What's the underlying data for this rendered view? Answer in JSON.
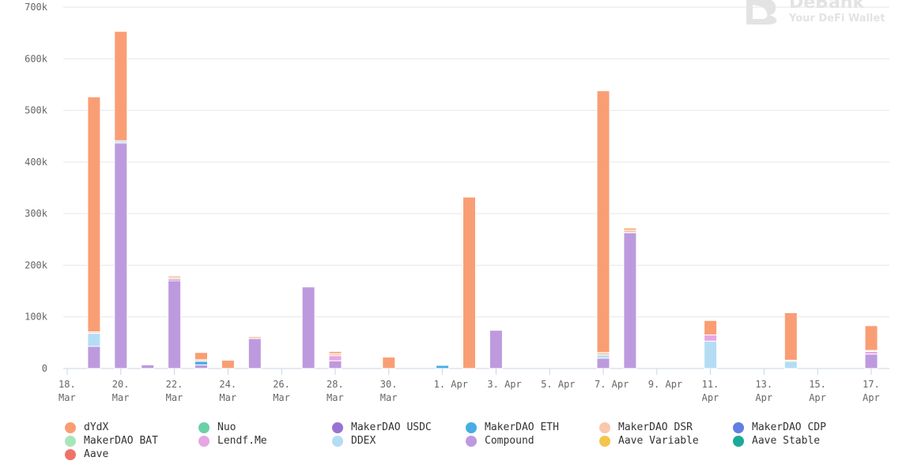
{
  "watermark": {
    "brand": "DeBank",
    "tagline": "Your DeFi Wallet"
  },
  "chart_data": {
    "type": "bar",
    "stacked": true,
    "title": "",
    "xlabel": "",
    "ylabel": "",
    "ylim": [
      0,
      700000
    ],
    "yticks": [
      0,
      100000,
      200000,
      300000,
      400000,
      500000,
      600000,
      700000
    ],
    "ytick_labels": [
      "0",
      "100k",
      "200k",
      "300k",
      "400k",
      "500k",
      "600k",
      "700k"
    ],
    "grid": true,
    "legend_position": "bottom",
    "x_ticks": [
      {
        "date": "2020-03-18",
        "line1": "18.",
        "line2": "Mar"
      },
      {
        "date": "2020-03-20",
        "line1": "20.",
        "line2": "Mar"
      },
      {
        "date": "2020-03-22",
        "line1": "22.",
        "line2": "Mar"
      },
      {
        "date": "2020-03-24",
        "line1": "24.",
        "line2": "Mar"
      },
      {
        "date": "2020-03-26",
        "line1": "26.",
        "line2": "Mar"
      },
      {
        "date": "2020-03-28",
        "line1": "28.",
        "line2": "Mar"
      },
      {
        "date": "2020-03-30",
        "line1": "30.",
        "line2": "Mar"
      },
      {
        "date": "2020-04-01",
        "line1": "1. Apr",
        "line2": ""
      },
      {
        "date": "2020-04-03",
        "line1": "3. Apr",
        "line2": ""
      },
      {
        "date": "2020-04-05",
        "line1": "5. Apr",
        "line2": ""
      },
      {
        "date": "2020-04-07",
        "line1": "7. Apr",
        "line2": ""
      },
      {
        "date": "2020-04-09",
        "line1": "9. Apr",
        "line2": ""
      },
      {
        "date": "2020-04-11",
        "line1": "11.",
        "line2": "Apr"
      },
      {
        "date": "2020-04-13",
        "line1": "13.",
        "line2": "Apr"
      },
      {
        "date": "2020-04-15",
        "line1": "15.",
        "line2": "Apr"
      },
      {
        "date": "2020-04-17",
        "line1": "17.",
        "line2": "Apr"
      }
    ],
    "series": [
      {
        "name": "dYdX",
        "color": "#f99e74"
      },
      {
        "name": "Nuo",
        "color": "#6cd0a6"
      },
      {
        "name": "MakerDAO USDC",
        "color": "#9a72d2"
      },
      {
        "name": "MakerDAO ETH",
        "color": "#47aee3"
      },
      {
        "name": "MakerDAO DSR",
        "color": "#f8c8ad"
      },
      {
        "name": "MakerDAO CDP",
        "color": "#627ee2"
      },
      {
        "name": "MakerDAO BAT",
        "color": "#a8e6b9"
      },
      {
        "name": "Lendf.Me",
        "color": "#e7a6e4"
      },
      {
        "name": "DDEX",
        "color": "#b4ddf5"
      },
      {
        "name": "Compound",
        "color": "#bd9ade"
      },
      {
        "name": "Aave Variable",
        "color": "#f5c44e"
      },
      {
        "name": "Aave Stable",
        "color": "#1aaa9c"
      },
      {
        "name": "Aave",
        "color": "#ef7269"
      }
    ],
    "bars": [
      {
        "date": "2020-03-19",
        "stack": [
          {
            "series": "Compound",
            "value": 43000
          },
          {
            "series": "DDEX",
            "value": 25000
          },
          {
            "series": "MakerDAO DSR",
            "value": 3000
          },
          {
            "series": "dYdX",
            "value": 455000
          }
        ]
      },
      {
        "date": "2020-03-20",
        "stack": [
          {
            "series": "Compound",
            "value": 437000
          },
          {
            "series": "DDEX",
            "value": 4000
          },
          {
            "series": "dYdX",
            "value": 212000
          }
        ]
      },
      {
        "date": "2020-03-21",
        "stack": [
          {
            "series": "Compound",
            "value": 7000
          }
        ]
      },
      {
        "date": "2020-03-22",
        "stack": [
          {
            "series": "Compound",
            "value": 170000
          },
          {
            "series": "MakerDAO USDC",
            "value": 3000
          },
          {
            "series": "MakerDAO DSR",
            "value": 3000
          },
          {
            "series": "dYdX",
            "value": 3000
          }
        ]
      },
      {
        "date": "2020-03-23",
        "stack": [
          {
            "series": "Compound",
            "value": 7000
          },
          {
            "series": "MakerDAO ETH",
            "value": 7000
          },
          {
            "series": "MakerDAO DSR",
            "value": 3000
          },
          {
            "series": "dYdX",
            "value": 14000
          }
        ]
      },
      {
        "date": "2020-03-24",
        "stack": [
          {
            "series": "dYdX",
            "value": 16000
          }
        ]
      },
      {
        "date": "2020-03-25",
        "stack": [
          {
            "series": "Compound",
            "value": 58000
          },
          {
            "series": "MakerDAO DSR",
            "value": 4000
          }
        ]
      },
      {
        "date": "2020-03-27",
        "stack": [
          {
            "series": "Compound",
            "value": 158000
          }
        ]
      },
      {
        "date": "2020-03-28",
        "stack": [
          {
            "series": "Compound",
            "value": 15000
          },
          {
            "series": "Lendf.Me",
            "value": 10000
          },
          {
            "series": "MakerDAO DSR",
            "value": 4000
          },
          {
            "series": "dYdX",
            "value": 4000
          }
        ]
      },
      {
        "date": "2020-03-30",
        "stack": [
          {
            "series": "dYdX",
            "value": 22000
          }
        ]
      },
      {
        "date": "2020-04-01",
        "stack": [
          {
            "series": "MakerDAO ETH",
            "value": 6000
          }
        ]
      },
      {
        "date": "2020-04-02",
        "stack": [
          {
            "series": "dYdX",
            "value": 332000
          }
        ]
      },
      {
        "date": "2020-04-03",
        "stack": [
          {
            "series": "Compound",
            "value": 74000
          }
        ]
      },
      {
        "date": "2020-04-07",
        "stack": [
          {
            "series": "Compound",
            "value": 20000
          },
          {
            "series": "DDEX",
            "value": 6000
          },
          {
            "series": "MakerDAO DSR",
            "value": 5000
          },
          {
            "series": "dYdX",
            "value": 507000
          }
        ]
      },
      {
        "date": "2020-04-08",
        "stack": [
          {
            "series": "Compound",
            "value": 263000
          },
          {
            "series": "MakerDAO DSR",
            "value": 5000
          },
          {
            "series": "dYdX",
            "value": 4000
          }
        ]
      },
      {
        "date": "2020-04-11",
        "stack": [
          {
            "series": "DDEX",
            "value": 53000
          },
          {
            "series": "Lendf.Me",
            "value": 12000
          },
          {
            "series": "dYdX",
            "value": 28000
          }
        ]
      },
      {
        "date": "2020-04-14",
        "stack": [
          {
            "series": "DDEX",
            "value": 14000
          },
          {
            "series": "MakerDAO DSR",
            "value": 2000
          },
          {
            "series": "dYdX",
            "value": 92000
          }
        ]
      },
      {
        "date": "2020-04-17",
        "stack": [
          {
            "series": "Compound",
            "value": 28000
          },
          {
            "series": "Lendf.Me",
            "value": 5000
          },
          {
            "series": "MakerDAO DSR",
            "value": 2000
          },
          {
            "series": "dYdX",
            "value": 48000
          }
        ]
      }
    ]
  }
}
